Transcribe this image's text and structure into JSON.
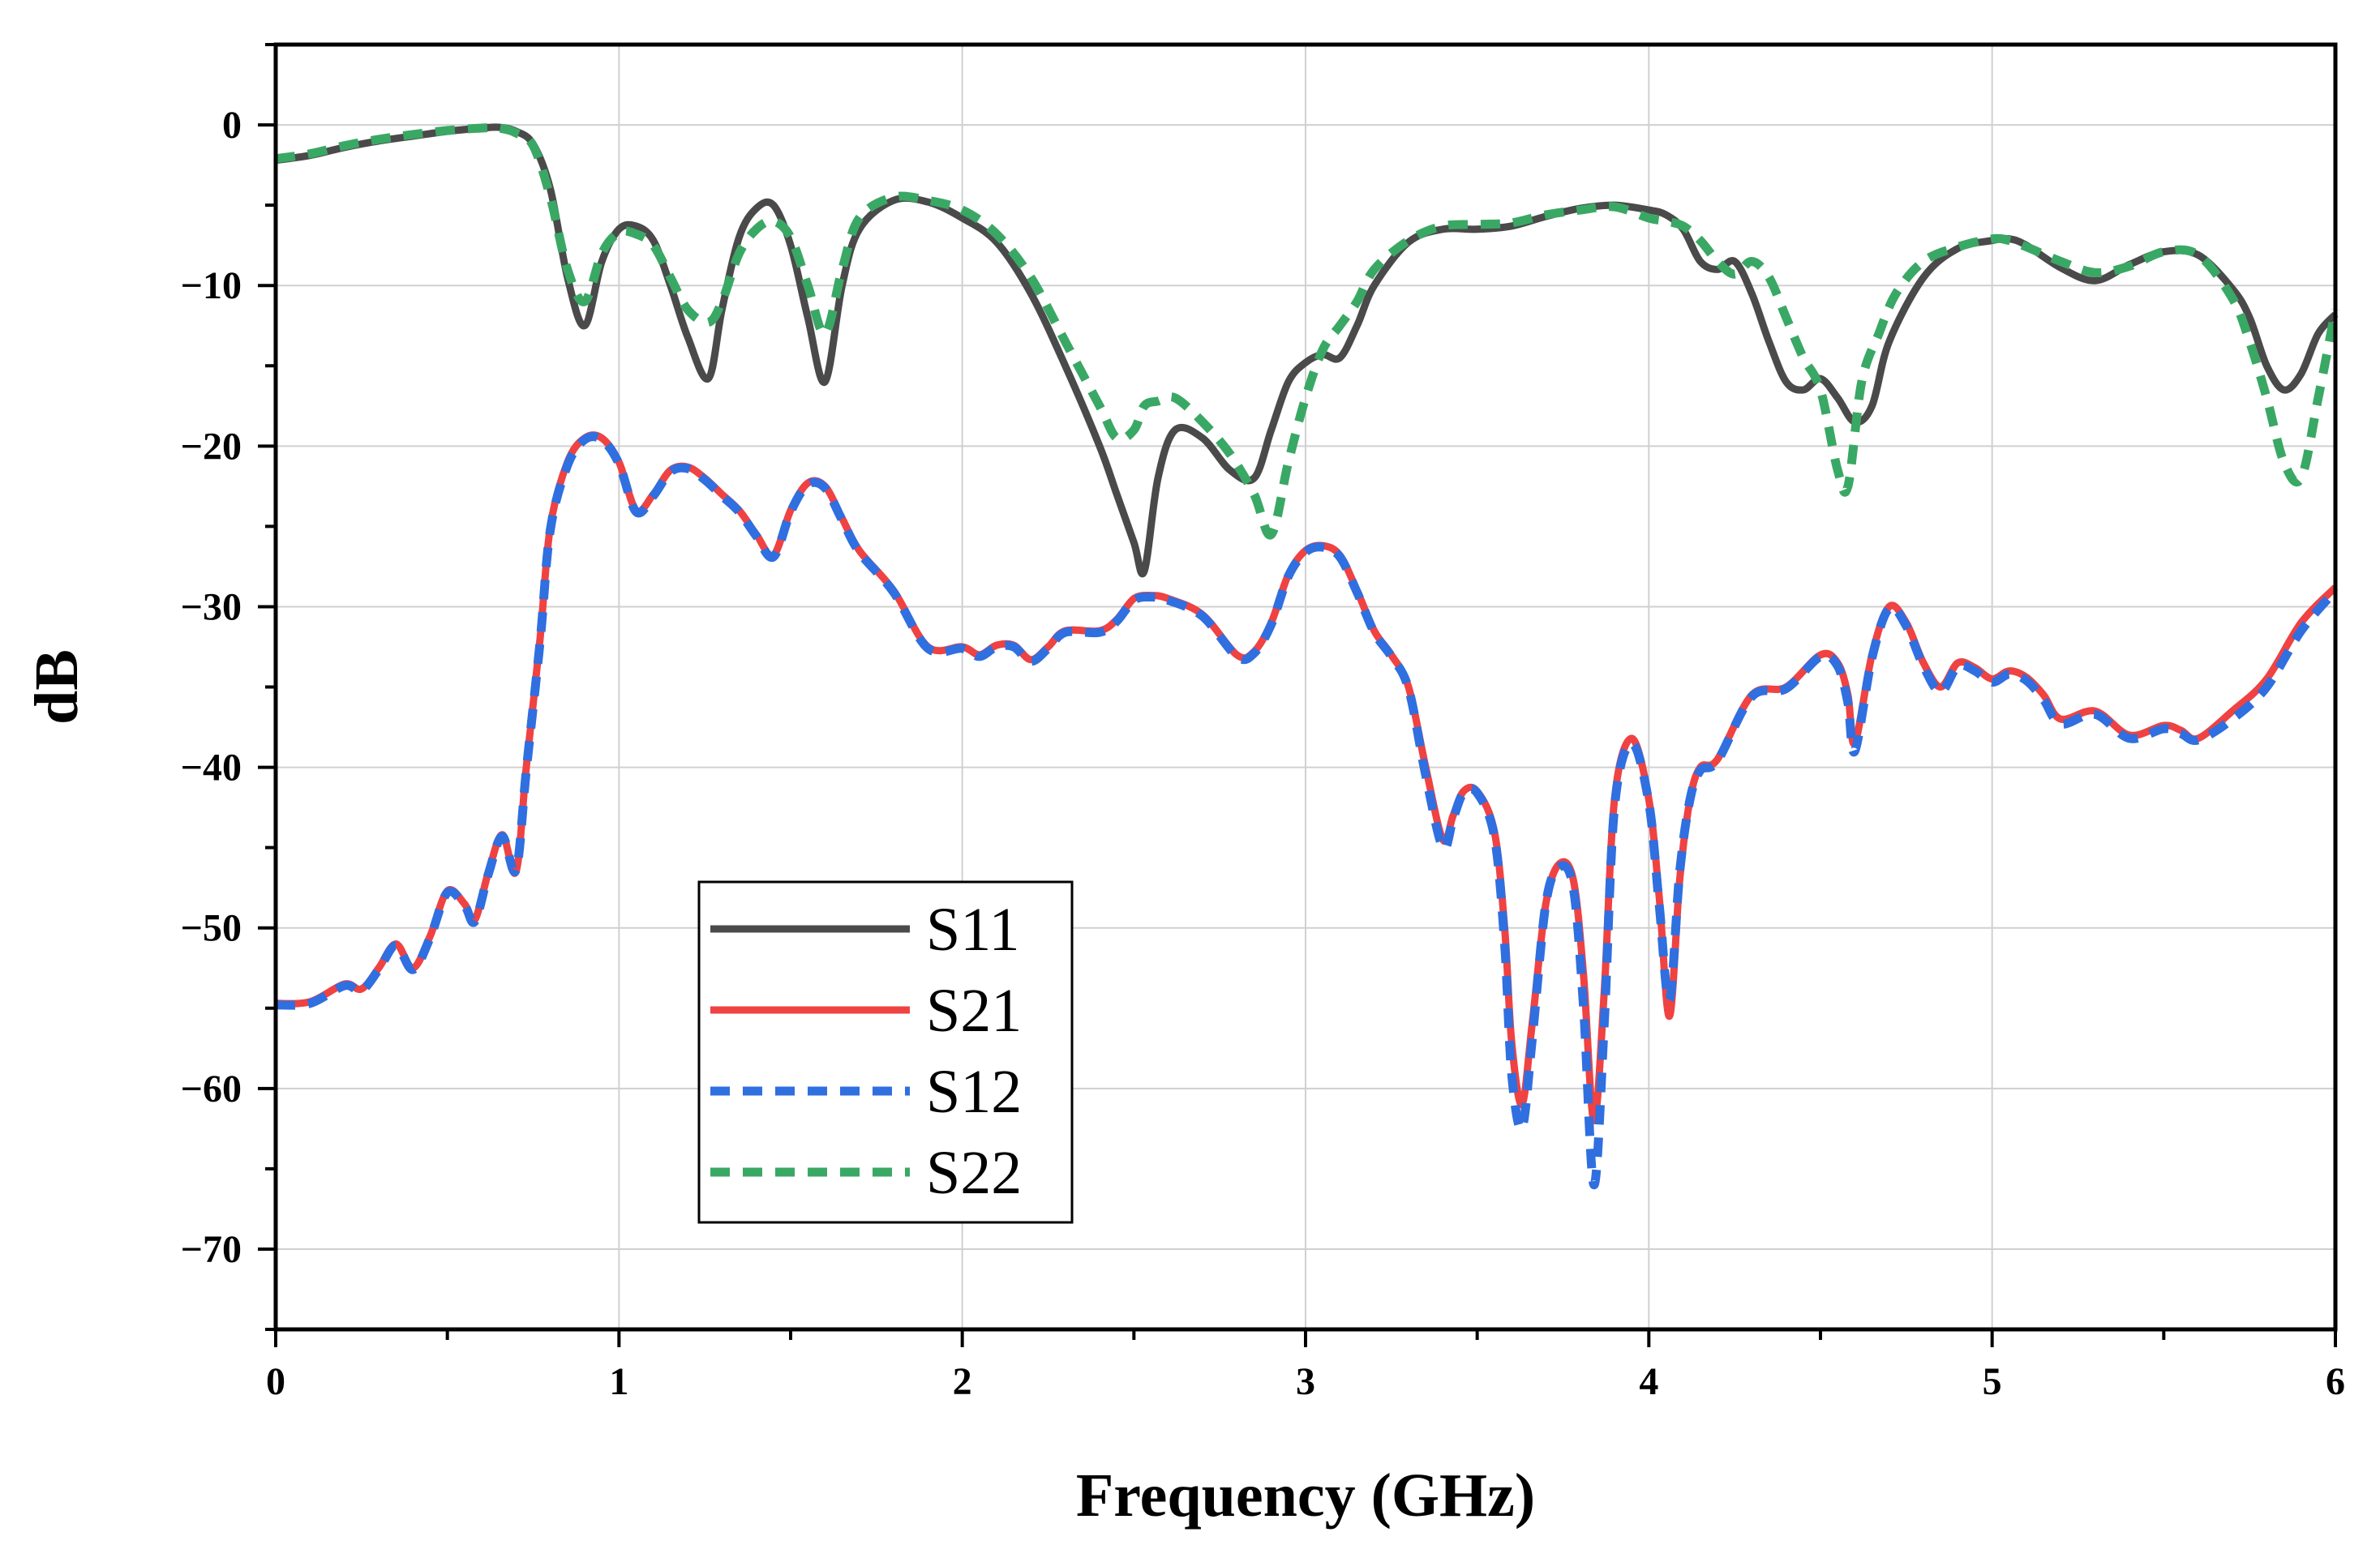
{
  "chart_data": {
    "type": "line",
    "xlabel": "Frequency (GHz)",
    "ylabel": "dB",
    "xlim": [
      0,
      6
    ],
    "ylim": [
      -75,
      5
    ],
    "xticks": [
      0,
      1,
      2,
      3,
      4,
      5,
      6
    ],
    "xtick_labels": [
      "0",
      "1",
      "2",
      "3",
      "4",
      "5",
      "6"
    ],
    "yticks": [
      0,
      -10,
      -20,
      -30,
      -40,
      -50,
      -60,
      -70
    ],
    "ytick_labels": [
      "0",
      "−10",
      "−20",
      "−30",
      "−40",
      "−50",
      "−60",
      "−70"
    ],
    "grid": true,
    "legend_position": "lower-left",
    "series": [
      {
        "name": "S11",
        "color": "#4a4a4a",
        "style": "solid",
        "x": [
          0,
          0.1,
          0.2,
          0.3,
          0.4,
          0.5,
          0.6,
          0.65,
          0.7,
          0.75,
          0.8,
          0.85,
          0.9,
          0.95,
          1.0,
          1.05,
          1.1,
          1.15,
          1.2,
          1.26,
          1.3,
          1.35,
          1.4,
          1.45,
          1.5,
          1.55,
          1.6,
          1.65,
          1.7,
          1.8,
          1.9,
          2.0,
          2.1,
          2.2,
          2.3,
          2.4,
          2.45,
          2.5,
          2.53,
          2.57,
          2.62,
          2.7,
          2.78,
          2.85,
          2.9,
          2.95,
          3.0,
          3.05,
          3.1,
          3.15,
          3.2,
          3.3,
          3.4,
          3.5,
          3.6,
          3.7,
          3.8,
          3.9,
          4.0,
          4.05,
          4.1,
          4.15,
          4.2,
          4.25,
          4.3,
          4.35,
          4.4,
          4.45,
          4.5,
          4.55,
          4.6,
          4.65,
          4.7,
          4.8,
          4.9,
          5.0,
          5.05,
          5.1,
          5.2,
          5.3,
          5.4,
          5.5,
          5.6,
          5.7,
          5.75,
          5.8,
          5.85,
          5.9,
          5.95,
          6.0
        ],
        "y": [
          -2.2,
          -1.9,
          -1.4,
          -1.0,
          -0.7,
          -0.4,
          -0.2,
          -0.15,
          -0.4,
          -1.2,
          -4,
          -9.5,
          -12.5,
          -8.5,
          -6.5,
          -6.3,
          -7.2,
          -10,
          -13.2,
          -15.8,
          -11.5,
          -7,
          -5.2,
          -5.0,
          -7.5,
          -12,
          -16,
          -10,
          -6.5,
          -4.7,
          -4.8,
          -5.8,
          -7.3,
          -10.5,
          -15,
          -20,
          -23,
          -26,
          -27.8,
          -22,
          -19,
          -19.5,
          -21.5,
          -22,
          -19,
          -16,
          -14.8,
          -14.3,
          -14.5,
          -12.5,
          -10,
          -7.3,
          -6.5,
          -6.5,
          -6.3,
          -5.7,
          -5.2,
          -5.0,
          -5.3,
          -5.6,
          -6.5,
          -8.5,
          -9.0,
          -8.5,
          -10.5,
          -13.5,
          -16,
          -16.5,
          -15.8,
          -17,
          -18.5,
          -17.5,
          -13.5,
          -9.5,
          -7.7,
          -7.2,
          -7.1,
          -7.5,
          -8.9,
          -9.7,
          -8.7,
          -7.9,
          -8.1,
          -10.2,
          -12,
          -15,
          -16.5,
          -15.5,
          -13,
          -11.8
        ]
      },
      {
        "name": "S21",
        "color": "#ef4242",
        "style": "solid",
        "x": [
          0,
          0.1,
          0.2,
          0.25,
          0.3,
          0.35,
          0.4,
          0.45,
          0.5,
          0.55,
          0.58,
          0.62,
          0.66,
          0.7,
          0.73,
          0.77,
          0.8,
          0.85,
          0.9,
          0.95,
          1.0,
          1.05,
          1.1,
          1.15,
          1.2,
          1.25,
          1.3,
          1.35,
          1.4,
          1.45,
          1.5,
          1.55,
          1.6,
          1.65,
          1.7,
          1.8,
          1.9,
          2.0,
          2.05,
          2.1,
          2.15,
          2.2,
          2.25,
          2.3,
          2.4,
          2.45,
          2.5,
          2.55,
          2.6,
          2.7,
          2.8,
          2.85,
          2.9,
          2.95,
          3.0,
          3.05,
          3.1,
          3.15,
          3.2,
          3.25,
          3.3,
          3.35,
          3.4,
          3.43,
          3.46,
          3.5,
          3.55,
          3.58,
          3.6,
          3.63,
          3.66,
          3.7,
          3.74,
          3.78,
          3.81,
          3.84,
          3.87,
          3.9,
          3.95,
          4.0,
          4.03,
          4.06,
          4.09,
          4.12,
          4.15,
          4.2,
          4.3,
          4.4,
          4.5,
          4.55,
          4.58,
          4.6,
          4.65,
          4.7,
          4.75,
          4.8,
          4.85,
          4.9,
          4.95,
          5.0,
          5.05,
          5.1,
          5.15,
          5.2,
          5.3,
          5.4,
          5.5,
          5.55,
          5.6,
          5.7,
          5.8,
          5.9,
          6.0
        ],
        "y": [
          -54.7,
          -54.6,
          -53.5,
          -53.8,
          -52.5,
          -51,
          -52.5,
          -50.5,
          -47.7,
          -48.5,
          -49.5,
          -46.5,
          -44.2,
          -46.5,
          -40,
          -32,
          -25,
          -21,
          -19.5,
          -19.5,
          -21,
          -24,
          -23,
          -21.5,
          -21.3,
          -22,
          -23,
          -24,
          -25.5,
          -26.8,
          -24,
          -22.3,
          -22.5,
          -24.5,
          -26.5,
          -29,
          -32.5,
          -32.5,
          -33,
          -32.4,
          -32.4,
          -33.3,
          -32.5,
          -31.5,
          -31.5,
          -30.8,
          -29.5,
          -29.3,
          -29.5,
          -30.5,
          -33,
          -32.8,
          -31,
          -28,
          -26.5,
          -26.2,
          -26.8,
          -29,
          -31.5,
          -33,
          -35,
          -40,
          -44.5,
          -43,
          -41.5,
          -41.5,
          -44,
          -50,
          -57,
          -61,
          -56,
          -48.5,
          -46,
          -47,
          -53,
          -62,
          -54,
          -42,
          -38.2,
          -42,
          -48,
          -55.5,
          -47,
          -42,
          -40,
          -39.5,
          -35.5,
          -35,
          -33,
          -33.5,
          -35.5,
          -38.5,
          -33,
          -30,
          -31,
          -33.5,
          -35,
          -33.5,
          -33.8,
          -34.5,
          -34,
          -34.4,
          -35.5,
          -37,
          -36.5,
          -38,
          -37.4,
          -37.7,
          -38.2,
          -36.5,
          -34.5,
          -31,
          -28.8
        ]
      },
      {
        "name": "S12",
        "color": "#2f6fe0",
        "style": "dashed",
        "x": [
          0,
          0.1,
          0.2,
          0.25,
          0.3,
          0.35,
          0.4,
          0.45,
          0.5,
          0.55,
          0.58,
          0.62,
          0.66,
          0.7,
          0.73,
          0.77,
          0.8,
          0.85,
          0.9,
          0.95,
          1.0,
          1.05,
          1.1,
          1.15,
          1.2,
          1.25,
          1.3,
          1.35,
          1.4,
          1.45,
          1.5,
          1.55,
          1.6,
          1.65,
          1.7,
          1.8,
          1.9,
          2.0,
          2.05,
          2.1,
          2.15,
          2.2,
          2.25,
          2.3,
          2.4,
          2.45,
          2.5,
          2.55,
          2.6,
          2.7,
          2.8,
          2.85,
          2.9,
          2.95,
          3.0,
          3.05,
          3.1,
          3.15,
          3.2,
          3.25,
          3.3,
          3.35,
          3.4,
          3.43,
          3.46,
          3.5,
          3.55,
          3.58,
          3.6,
          3.63,
          3.66,
          3.7,
          3.74,
          3.78,
          3.81,
          3.84,
          3.87,
          3.9,
          3.95,
          4.0,
          4.03,
          4.06,
          4.09,
          4.12,
          4.15,
          4.2,
          4.3,
          4.4,
          4.5,
          4.55,
          4.58,
          4.6,
          4.65,
          4.7,
          4.75,
          4.8,
          4.85,
          4.9,
          4.95,
          5.0,
          5.05,
          5.1,
          5.15,
          5.2,
          5.3,
          5.4,
          5.5,
          5.55,
          5.6,
          5.7,
          5.8,
          5.9,
          6.0
        ],
        "y": [
          -54.8,
          -54.7,
          -53.6,
          -53.9,
          -52.6,
          -51.1,
          -52.6,
          -50.6,
          -47.8,
          -48.6,
          -49.6,
          -46.6,
          -44.3,
          -46.4,
          -40.2,
          -32.2,
          -25.2,
          -21.2,
          -19.6,
          -19.6,
          -21.1,
          -24.1,
          -23.1,
          -21.6,
          -21.4,
          -22.1,
          -23.1,
          -24.1,
          -25.6,
          -26.9,
          -24.1,
          -22.4,
          -22.6,
          -24.6,
          -26.6,
          -29.1,
          -32.6,
          -32.6,
          -33.1,
          -32.5,
          -32.5,
          -33.4,
          -32.6,
          -31.6,
          -31.6,
          -30.9,
          -29.6,
          -29.4,
          -29.6,
          -30.6,
          -33.1,
          -32.9,
          -31.1,
          -28.1,
          -26.6,
          -26.3,
          -26.9,
          -29.1,
          -31.6,
          -33.1,
          -35.1,
          -40.5,
          -45,
          -43.2,
          -41.6,
          -41.6,
          -44.3,
          -51,
          -59,
          -62.5,
          -57,
          -48.5,
          -46.2,
          -47.5,
          -55,
          -66,
          -56,
          -42.5,
          -38.5,
          -42.2,
          -48.5,
          -54.5,
          -46.5,
          -42,
          -40.2,
          -39.6,
          -35.6,
          -35.1,
          -33.1,
          -33.7,
          -36,
          -39,
          -33.2,
          -30.1,
          -31.2,
          -33.7,
          -35.3,
          -33.7,
          -34,
          -34.7,
          -34.2,
          -34.6,
          -35.8,
          -37.3,
          -36.7,
          -38.2,
          -37.6,
          -37.9,
          -38.3,
          -37,
          -35,
          -31.5,
          -29
        ]
      },
      {
        "name": "S22",
        "color": "#3aa865",
        "style": "dashed",
        "x": [
          0,
          0.1,
          0.2,
          0.3,
          0.4,
          0.5,
          0.6,
          0.65,
          0.7,
          0.75,
          0.8,
          0.85,
          0.9,
          0.95,
          1.0,
          1.05,
          1.1,
          1.15,
          1.2,
          1.26,
          1.3,
          1.35,
          1.4,
          1.45,
          1.5,
          1.55,
          1.6,
          1.65,
          1.7,
          1.8,
          1.9,
          2.0,
          2.1,
          2.2,
          2.3,
          2.4,
          2.45,
          2.5,
          2.53,
          2.57,
          2.62,
          2.7,
          2.78,
          2.85,
          2.9,
          2.95,
          3.0,
          3.05,
          3.1,
          3.15,
          3.2,
          3.3,
          3.4,
          3.5,
          3.6,
          3.7,
          3.8,
          3.9,
          4.0,
          4.05,
          4.1,
          4.15,
          4.2,
          4.25,
          4.3,
          4.35,
          4.4,
          4.45,
          4.5,
          4.55,
          4.58,
          4.62,
          4.67,
          4.72,
          4.8,
          4.9,
          5.0,
          5.05,
          5.1,
          5.2,
          5.3,
          5.4,
          5.5,
          5.6,
          5.7,
          5.75,
          5.8,
          5.85,
          5.9,
          5.95,
          6.0
        ],
        "y": [
          -2.1,
          -1.8,
          -1.3,
          -0.9,
          -0.6,
          -0.35,
          -0.2,
          -0.2,
          -0.5,
          -1.3,
          -4.5,
          -9,
          -11,
          -8,
          -6.7,
          -6.8,
          -7.5,
          -9.5,
          -11.5,
          -12.3,
          -11,
          -8,
          -6.5,
          -6.0,
          -7,
          -10,
          -13,
          -9,
          -5.8,
          -4.5,
          -4.7,
          -5.3,
          -6.8,
          -9.5,
          -13.5,
          -17.5,
          -19.5,
          -19,
          -17.5,
          -17.2,
          -17,
          -18.5,
          -20.5,
          -23,
          -25.5,
          -21,
          -17,
          -14,
          -12.5,
          -11,
          -9,
          -7.2,
          -6.3,
          -6.2,
          -6.1,
          -5.6,
          -5.3,
          -5.1,
          -5.8,
          -6.0,
          -6.3,
          -7.2,
          -8.5,
          -9.3,
          -8.5,
          -9.5,
          -12,
          -14.5,
          -16.5,
          -21.5,
          -22.5,
          -16,
          -13,
          -10.5,
          -8.5,
          -7.6,
          -7.1,
          -7.2,
          -7.6,
          -8.5,
          -9.2,
          -8.8,
          -7.9,
          -8.1,
          -10.8,
          -13.5,
          -17,
          -21,
          -22,
          -17,
          -11.5
        ]
      }
    ]
  }
}
